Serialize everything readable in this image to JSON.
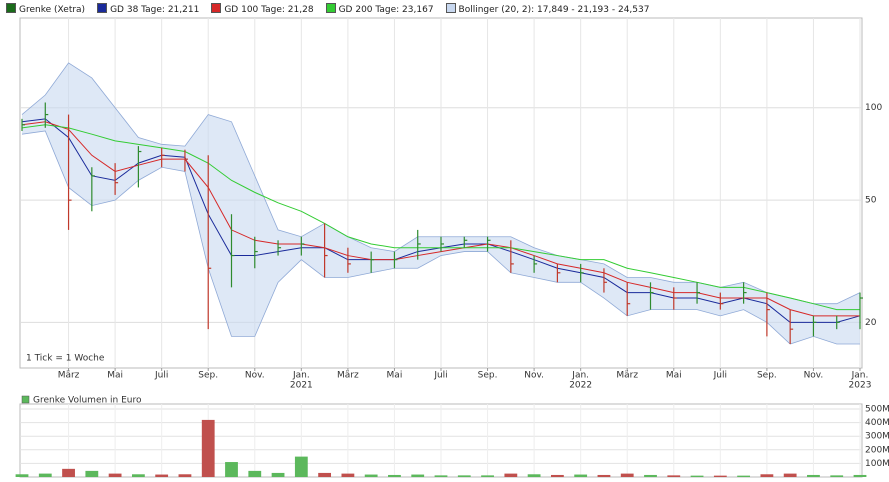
{
  "chart_data": [
    {
      "type": "stock",
      "categories": [
        null,
        null,
        "März",
        null,
        "Mai",
        null,
        "Juli",
        null,
        "Sep.",
        null,
        "Nov.",
        null,
        "Jan.",
        null,
        "März",
        null,
        "Mai",
        null,
        "Juli",
        null,
        "Sep.",
        null,
        "Nov.",
        null,
        "Jan.",
        null,
        "März",
        null,
        "Mai",
        null,
        "Juli",
        null,
        "Sep.",
        null,
        "Nov.",
        null,
        "Jan."
      ],
      "years": [
        null,
        null,
        null,
        null,
        null,
        null,
        null,
        null,
        null,
        null,
        null,
        null,
        "2021",
        null,
        null,
        null,
        null,
        null,
        null,
        null,
        null,
        null,
        null,
        null,
        "2022",
        null,
        null,
        null,
        null,
        null,
        null,
        null,
        null,
        null,
        null,
        null,
        "2023"
      ],
      "price": {
        "name": "Grenke (Xetra)",
        "color": "#1a6b1a",
        "up_color": "#2e8b2e",
        "down_color": "#c0392b",
        "close": [
          88,
          95,
          50,
          60,
          57,
          72,
          70,
          68,
          30,
          33,
          34,
          35,
          36,
          33,
          31,
          32,
          32,
          36,
          36,
          37,
          37,
          31,
          31,
          29,
          29,
          27,
          23,
          25,
          24,
          25,
          23,
          25,
          22,
          19,
          20,
          20,
          24
        ],
        "high": [
          92,
          104,
          95,
          64,
          66,
          75,
          74,
          73,
          70,
          45,
          38,
          37,
          38,
          42,
          35,
          34,
          34,
          40,
          38,
          38,
          38,
          37,
          33,
          31,
          31,
          30,
          27,
          27,
          26,
          27,
          25,
          27,
          25,
          22,
          21,
          21,
          25
        ],
        "low": [
          84,
          86,
          40,
          46,
          52,
          55,
          64,
          62,
          19,
          26,
          30,
          33,
          33,
          28,
          29,
          29,
          30,
          32,
          34,
          35,
          34,
          29,
          29,
          27,
          27,
          25,
          21,
          22,
          22,
          23,
          22,
          23,
          18,
          17,
          18,
          19,
          19
        ]
      },
      "series": [
        {
          "name": "GD 38 Tage: 21,211",
          "color": "#1a2a9a",
          "values": [
            90,
            92,
            80,
            60,
            58,
            66,
            70,
            69,
            45,
            33,
            33,
            34,
            35,
            35,
            32,
            32,
            32,
            34,
            35,
            36,
            36,
            34,
            32,
            30,
            29,
            28,
            25,
            25,
            24,
            24,
            23,
            24,
            23,
            20,
            20,
            20,
            21
          ]
        },
        {
          "name": "GD 100 Tage: 21,28",
          "color": "#d62828",
          "values": [
            88,
            90,
            85,
            70,
            62,
            65,
            68,
            68,
            55,
            40,
            37,
            36,
            36,
            35,
            33,
            32,
            32,
            33,
            34,
            35,
            36,
            35,
            33,
            31,
            30,
            29,
            27,
            26,
            25,
            25,
            24,
            24,
            24,
            22,
            21,
            21,
            21
          ]
        },
        {
          "name": "GD 200 Tage: 23,167",
          "color": "#33cc33",
          "values": [
            86,
            88,
            86,
            82,
            78,
            76,
            74,
            72,
            66,
            58,
            53,
            49,
            46,
            42,
            38,
            36,
            35,
            35,
            35,
            35,
            35,
            35,
            34,
            33,
            32,
            32,
            30,
            29,
            28,
            27,
            26,
            26,
            25,
            24,
            23,
            22,
            22
          ]
        }
      ],
      "band": {
        "name": "Bollinger (20, 2): 17,849 - 21,193 - 24,537",
        "color": "#c8d8f0",
        "line_color": "#8fa9d6",
        "upper": [
          95,
          110,
          140,
          125,
          100,
          80,
          76,
          75,
          95,
          90,
          60,
          40,
          38,
          42,
          38,
          35,
          34,
          38,
          38,
          38,
          38,
          38,
          35,
          33,
          32,
          31,
          28,
          28,
          27,
          27,
          26,
          27,
          25,
          24,
          23,
          23,
          25
        ],
        "lower": [
          82,
          84,
          55,
          48,
          50,
          58,
          64,
          62,
          30,
          18,
          18,
          27,
          32,
          28,
          28,
          29,
          30,
          30,
          33,
          34,
          34,
          29,
          28,
          27,
          27,
          24,
          21,
          22,
          22,
          22,
          21,
          22,
          20,
          17,
          18,
          17,
          17
        ]
      },
      "ylim": [
        14.2,
        196
      ],
      "yticks": [
        20,
        50,
        100
      ],
      "log": true,
      "grid": true,
      "note": "1 Tick = 1 Woche"
    },
    {
      "type": "volume",
      "name": "Grenke Volumen in Euro",
      "color": "#5cb85c",
      "down_color": "#c0504d",
      "values": [
        20,
        25,
        60,
        45,
        25,
        20,
        18,
        20,
        420,
        110,
        45,
        30,
        150,
        30,
        25,
        18,
        15,
        18,
        12,
        12,
        12,
        25,
        20,
        15,
        18,
        15,
        25,
        15,
        12,
        10,
        10,
        10,
        20,
        25,
        15,
        12,
        15
      ],
      "ylim": [
        0,
        537
      ],
      "yticks": [
        {
          "value": 100,
          "label": "100M"
        },
        {
          "value": 200,
          "label": "200M"
        },
        {
          "value": 300,
          "label": "300M"
        },
        {
          "value": 400,
          "label": "400M"
        },
        {
          "value": 500,
          "label": "500M"
        }
      ]
    }
  ]
}
